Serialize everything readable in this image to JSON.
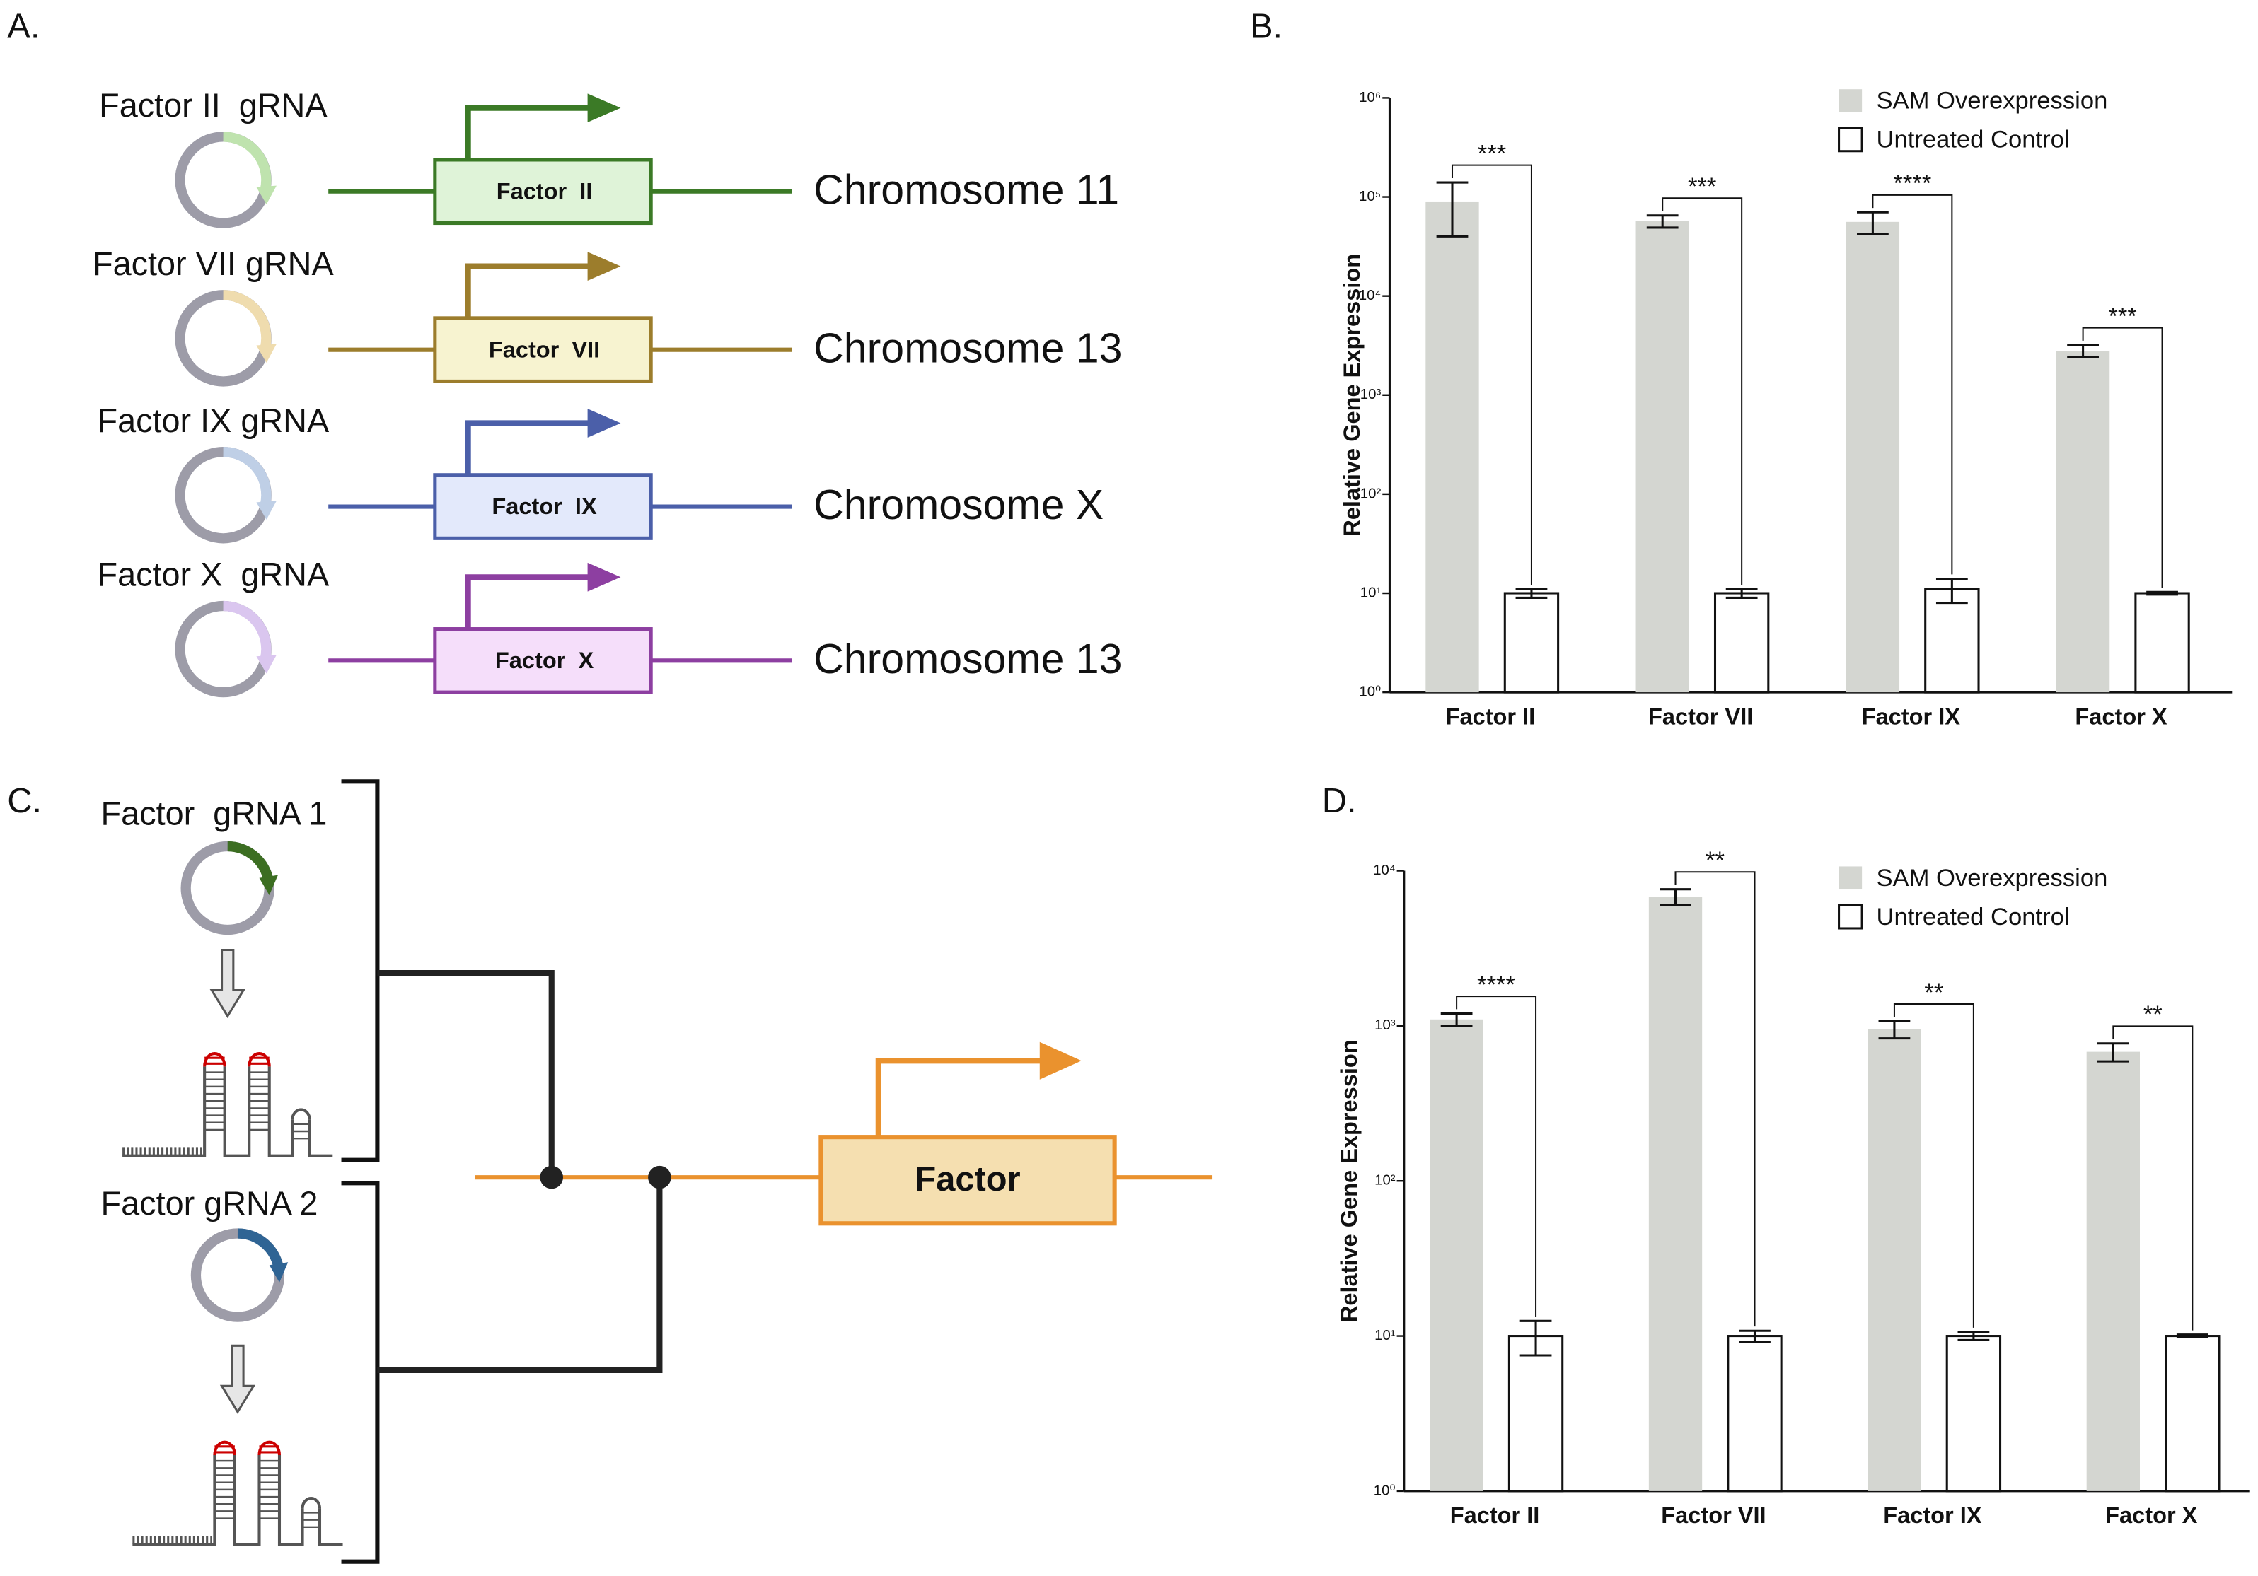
{
  "figure": {
    "panel_a": {
      "label": "A.",
      "rows": [
        {
          "grna": "Factor II  gRNA",
          "gene": "Factor  II",
          "chromosome": "Chromosome 11"
        },
        {
          "grna": "Factor VII gRNA",
          "gene": "Factor  VII",
          "chromosome": "Chromosome 13"
        },
        {
          "grna": "Factor IX gRNA",
          "gene": "Factor  IX",
          "chromosome": "Chromosome X"
        },
        {
          "grna": "Factor X  gRNA",
          "gene": "Factor  X",
          "chromosome": "Chromosome 13"
        }
      ]
    },
    "panel_c": {
      "label": "C.",
      "grna_1": "Factor  gRNA 1",
      "grna_2": "Factor gRNA 2",
      "gene": "Factor"
    }
  },
  "chart_data": [
    {
      "type": "bar",
      "panel_label": "B.",
      "ylabel": "Relative Gene Expression",
      "log_scale": true,
      "categories": [
        "Factor II",
        "Factor VII",
        "Factor IX",
        "Factor X"
      ],
      "series": [
        {
          "name": "SAM Overexpression",
          "color": "#d4d6d1",
          "values": [
            90000,
            57000,
            56000,
            2800
          ],
          "errors": [
            50000,
            8000,
            14000,
            400
          ]
        },
        {
          "name": "Untreated Control",
          "color": "#ffffff",
          "values": [
            10,
            10,
            11,
            10
          ],
          "errors": [
            1,
            1,
            3,
            0.3
          ]
        }
      ],
      "annotations": [
        "***",
        "***",
        "****",
        "***"
      ],
      "ylim": [
        1,
        1000000
      ],
      "yticks": [
        {
          "value": 1,
          "label": "10⁰"
        },
        {
          "value": 10,
          "label": "10¹"
        },
        {
          "value": 100,
          "label": "10²"
        },
        {
          "value": 1000,
          "label": "10³"
        },
        {
          "value": 10000,
          "label": "10⁴"
        },
        {
          "value": 100000,
          "label": "10⁵"
        },
        {
          "value": 1000000,
          "label": "10⁶"
        }
      ]
    },
    {
      "type": "bar",
      "panel_label": "D.",
      "ylabel": "Relative Gene Expression",
      "log_scale": true,
      "categories": [
        "Factor II",
        "Factor VII",
        "Factor IX",
        "Factor X"
      ],
      "series": [
        {
          "name": "SAM Overexpression",
          "color": "#d4d6d1",
          "values": [
            1100,
            6800,
            950,
            680
          ],
          "errors": [
            100,
            800,
            120,
            90
          ]
        },
        {
          "name": "Untreated Control",
          "color": "#ffffff",
          "values": [
            10,
            10,
            10,
            10
          ],
          "errors": [
            2.5,
            0.8,
            0.6,
            0.2
          ]
        }
      ],
      "annotations": [
        "****",
        "**",
        "**",
        "**"
      ],
      "ylim": [
        1,
        10000
      ],
      "yticks": [
        {
          "value": 1,
          "label": "10⁰"
        },
        {
          "value": 10,
          "label": "10¹"
        },
        {
          "value": 100,
          "label": "10²"
        },
        {
          "value": 1000,
          "label": "10³"
        },
        {
          "value": 10000,
          "label": "10⁴"
        }
      ]
    }
  ]
}
